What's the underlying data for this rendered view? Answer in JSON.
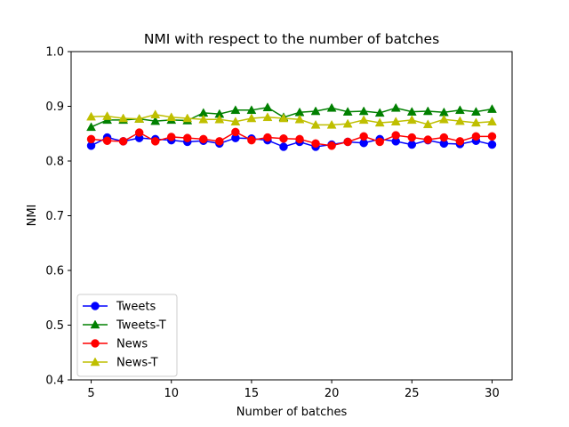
{
  "chart_data": {
    "type": "line",
    "title": "NMI with respect to the number of batches",
    "xlabel": "Number of batches",
    "ylabel": "NMI",
    "xlim": [
      3.75,
      31.25
    ],
    "ylim": [
      0.4,
      1.0
    ],
    "xticks": [
      5,
      10,
      15,
      20,
      25,
      30
    ],
    "yticks": [
      0.4,
      0.5,
      0.6,
      0.7,
      0.8,
      0.9,
      1.0
    ],
    "grid": false,
    "legend_position": "lower-left",
    "x": [
      5,
      6,
      7,
      8,
      9,
      10,
      11,
      12,
      13,
      14,
      15,
      16,
      17,
      18,
      19,
      20,
      21,
      22,
      23,
      24,
      25,
      26,
      27,
      28,
      29,
      30
    ],
    "series": [
      {
        "name": "Tweets",
        "color": "#0000ff",
        "marker": "circle",
        "values": [
          0.828,
          0.843,
          0.836,
          0.842,
          0.84,
          0.838,
          0.835,
          0.837,
          0.832,
          0.842,
          0.841,
          0.838,
          0.826,
          0.835,
          0.826,
          0.83,
          0.835,
          0.833,
          0.84,
          0.836,
          0.83,
          0.838,
          0.832,
          0.831,
          0.837,
          0.83
        ]
      },
      {
        "name": "Tweets-T",
        "color": "#008000",
        "marker": "triangle",
        "values": [
          0.862,
          0.875,
          0.875,
          0.877,
          0.873,
          0.875,
          0.874,
          0.888,
          0.886,
          0.893,
          0.893,
          0.898,
          0.88,
          0.889,
          0.891,
          0.897,
          0.89,
          0.891,
          0.888,
          0.897,
          0.89,
          0.891,
          0.889,
          0.893,
          0.89,
          0.895
        ]
      },
      {
        "name": "News",
        "color": "#ff0000",
        "marker": "circle",
        "values": [
          0.84,
          0.837,
          0.836,
          0.852,
          0.836,
          0.844,
          0.842,
          0.84,
          0.836,
          0.853,
          0.838,
          0.843,
          0.841,
          0.84,
          0.832,
          0.828,
          0.835,
          0.845,
          0.835,
          0.847,
          0.843,
          0.839,
          0.843,
          0.836,
          0.845,
          0.845
        ]
      },
      {
        "name": "News-T",
        "color": "#bfbf00",
        "marker": "triangle",
        "values": [
          0.881,
          0.882,
          0.878,
          0.877,
          0.885,
          0.88,
          0.878,
          0.876,
          0.876,
          0.872,
          0.878,
          0.88,
          0.878,
          0.876,
          0.866,
          0.866,
          0.868,
          0.875,
          0.87,
          0.872,
          0.875,
          0.867,
          0.876,
          0.873,
          0.87,
          0.872
        ]
      }
    ]
  }
}
